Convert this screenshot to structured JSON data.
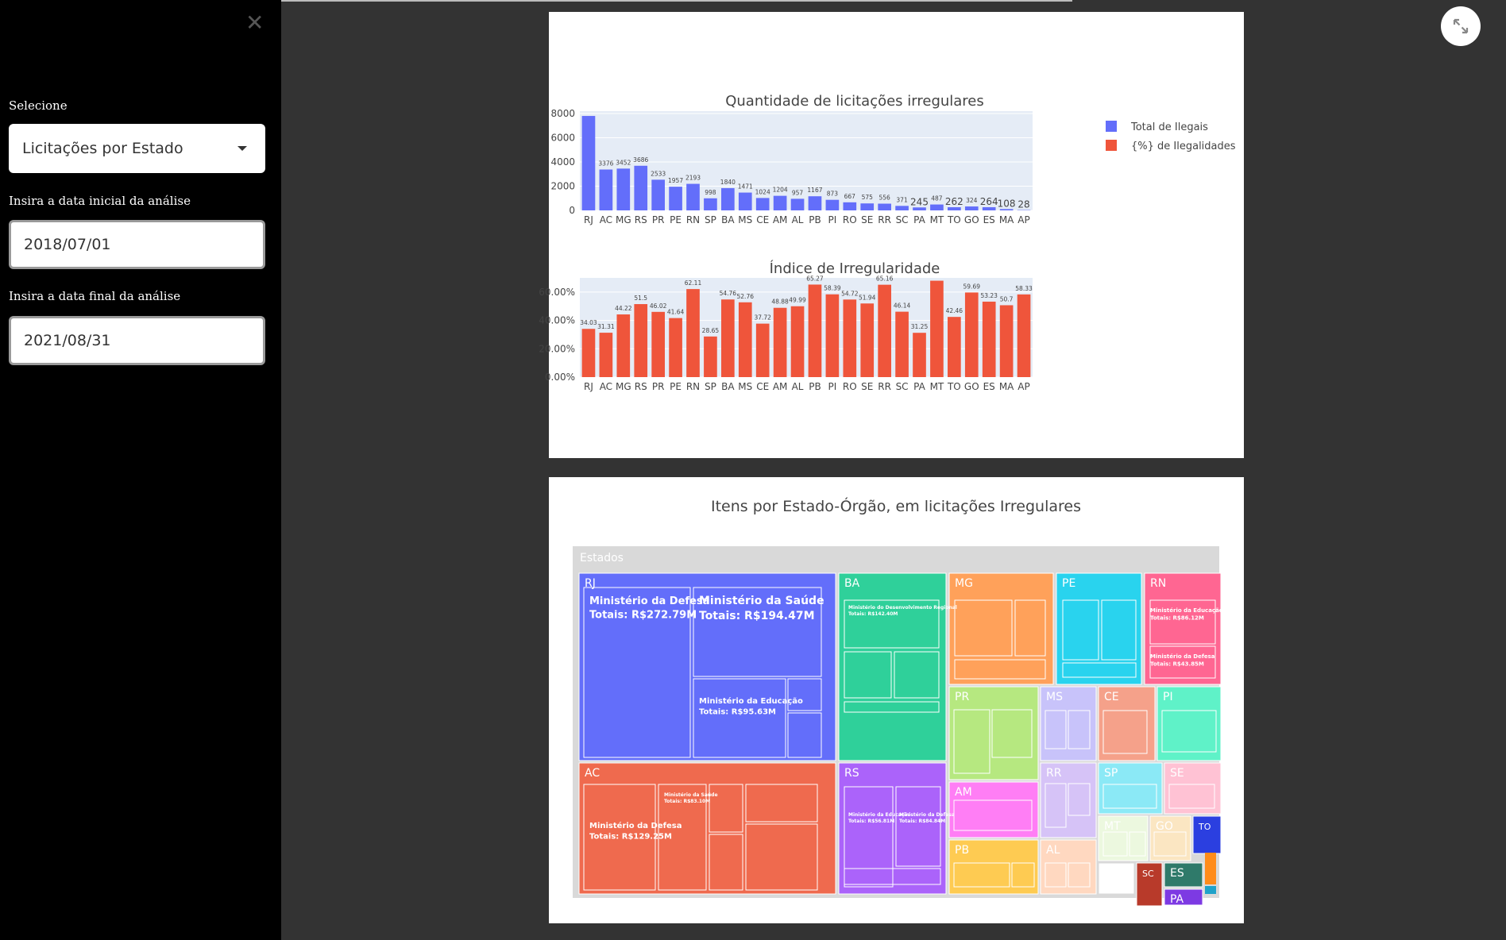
{
  "sidebar": {
    "close_glyph": "✕",
    "select_label": "Selecione",
    "select_value": "Licitações por Estado",
    "start_label": "Insira a data inicial da análise",
    "start_value": "2018/07/01",
    "end_label": "Insira a data final da análise",
    "end_value": "2021/08/31"
  },
  "expand_icon": "expand-icon",
  "colors": {
    "blue": "#636efa",
    "red": "#ef553b",
    "plot_bg": "#e5ecf6"
  },
  "chart_data": [
    {
      "type": "bar",
      "title": "Quantidade de licitações irregulares",
      "categories": [
        "RJ",
        "AC",
        "MG",
        "RS",
        "PR",
        "PE",
        "RN",
        "SP",
        "BA",
        "MS",
        "CE",
        "AM",
        "AL",
        "PB",
        "PI",
        "RO",
        "SE",
        "RR",
        "SC",
        "PA",
        "MT",
        "TO",
        "GO",
        "ES",
        "MA",
        "AP"
      ],
      "values": [
        7800,
        3376,
        3452,
        3686,
        2533,
        1957,
        2193,
        998,
        1840,
        1471,
        1024,
        1204,
        957,
        1167,
        873,
        667,
        575,
        556,
        371,
        245,
        487,
        262,
        324,
        264,
        108,
        28
      ],
      "value_labels": [
        "",
        "3376",
        "3452",
        "3686",
        "2533",
        "1957",
        "2193",
        "998",
        "1840",
        "1471",
        "1024",
        "1204",
        "957",
        "1167",
        "873",
        "667",
        "575",
        "556",
        "371",
        "245",
        "487",
        "262",
        "324",
        "264",
        "108",
        "28"
      ],
      "yticks": [
        "0",
        "2000",
        "4000",
        "6000",
        "8000"
      ],
      "ylim": [
        0,
        8000
      ],
      "legend": [
        "Total de Ilegais",
        "{%} de Ilegalidades"
      ],
      "legend_position": "top-right"
    },
    {
      "type": "bar",
      "title": "Índice de Irregularidade",
      "categories": [
        "RJ",
        "AC",
        "MG",
        "RS",
        "PR",
        "PE",
        "RN",
        "SP",
        "BA",
        "MS",
        "CE",
        "AM",
        "AL",
        "PB",
        "PI",
        "RO",
        "SE",
        "RR",
        "SC",
        "PA",
        "MT",
        "TO",
        "GO",
        "ES",
        "MA",
        "AP"
      ],
      "values": [
        34.03,
        31.31,
        44.22,
        51.5,
        46.02,
        41.64,
        62.11,
        28.65,
        54.76,
        52.76,
        37.72,
        48.88,
        49.99,
        65.27,
        58.39,
        54.72,
        51.94,
        65.16,
        46.14,
        31.25,
        68.0,
        42.46,
        59.69,
        53.23,
        50.7,
        58.33
      ],
      "value_labels": [
        "34.03",
        "31.31",
        "44.22",
        "51.5",
        "46.02",
        "41.64",
        "62.11",
        "28.65",
        "54.76",
        "52.76",
        "37.72",
        "48.88",
        "49.99",
        "65.27",
        "58.39",
        "54.72",
        "51.94",
        "65.16",
        "46.14",
        "31.25",
        "",
        "42.46",
        "59.69",
        "53.23",
        "50.7",
        "58.33"
      ],
      "yticks": [
        "0.00%",
        "20.00%",
        "40.00%",
        "60.00%"
      ],
      "ylim": [
        0,
        70
      ]
    },
    {
      "type": "treemap",
      "title": "Itens por Estado-Órgão, em licitações Irregulares",
      "root_label": "Estados",
      "states": [
        "RJ",
        "BA",
        "MG",
        "PE",
        "RN",
        "AC",
        "RS",
        "PR",
        "MS",
        "CE",
        "PI",
        "AM",
        "RR",
        "SP",
        "SE",
        "PB",
        "AL",
        "MT",
        "GO",
        "TO",
        "SC",
        "ES",
        "PA"
      ],
      "leaf_labels": [
        {
          "name": "Ministério da Defesa",
          "total": "Totais: R$272.79M"
        },
        {
          "name": "Ministério da Saúde",
          "total": "Totais: R$194.47M"
        },
        {
          "name": "Ministério da Educação",
          "total": "Totais: R$95.63M"
        },
        {
          "name": "Ministério da Defesa",
          "total": "Totais: R$129.25M"
        },
        {
          "name": "Ministério da Saúde",
          "total": "Totais: R$83.10M"
        },
        {
          "name": "Ministério do Desenvolvimento Regional",
          "total": "Totais: R$142.40M"
        },
        {
          "name": "Ministério da Educação",
          "total": "Totais: R$56.81M"
        },
        {
          "name": "Ministério da Defesa",
          "total": "Totais: R$43.85M"
        },
        {
          "name": "Ministério da Educação",
          "total": "Totais: R$86.12M"
        },
        {
          "name": "Ministério da Defesa",
          "total": "Totais: R$84.84M"
        }
      ]
    }
  ]
}
